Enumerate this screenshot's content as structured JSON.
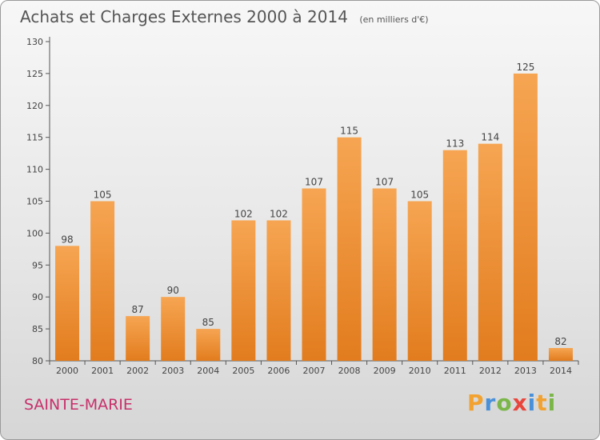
{
  "title": "Achats et Charges Externes 2000 à 2014",
  "unit": "(en milliers d'€)",
  "place": "SAINTE-MARIE",
  "logo": {
    "letters": [
      "P",
      "r",
      "o",
      "x",
      "i",
      "t",
      "i"
    ],
    "colors": [
      "#f2a230",
      "#4a90d9",
      "#7ab648",
      "#e8453c",
      "#4a90d9",
      "#f2a230",
      "#7ab648"
    ]
  },
  "colors": {
    "bar": "#f0913a",
    "bar_dark": "#e07b22",
    "title": "#555555",
    "place": "#c8306a"
  },
  "chart_data": {
    "type": "bar",
    "categories": [
      "2000",
      "2001",
      "2002",
      "2003",
      "2004",
      "2005",
      "2006",
      "2007",
      "2008",
      "2009",
      "2010",
      "2011",
      "2012",
      "2013",
      "2014"
    ],
    "values": [
      98,
      105,
      87,
      90,
      85,
      102,
      102,
      107,
      115,
      107,
      105,
      113,
      114,
      125,
      82
    ],
    "title": "Achats et Charges Externes 2000 à 2014",
    "ylim": [
      80,
      130
    ],
    "yticks": [
      80,
      85,
      90,
      95,
      100,
      105,
      110,
      115,
      120,
      125,
      130
    ],
    "grid": false,
    "legend": "none"
  }
}
